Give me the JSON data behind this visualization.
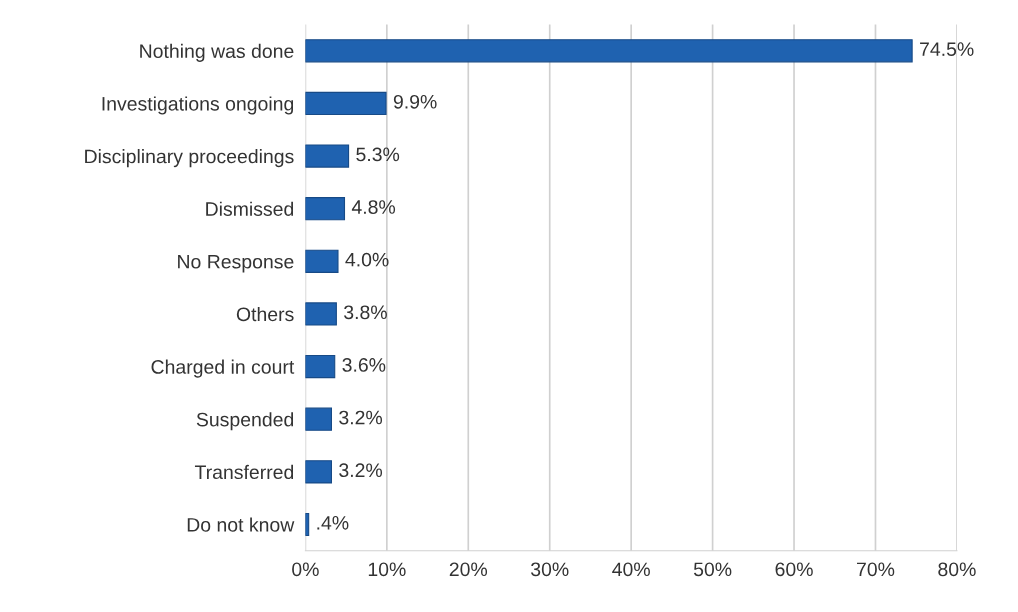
{
  "chart_data": {
    "type": "bar",
    "orientation": "horizontal",
    "categories": [
      "Nothing was done",
      "Investigations ongoing",
      "Disciplinary proceedings",
      "Dismissed",
      "No Response",
      "Others",
      "Charged in court",
      "Suspended",
      "Transferred",
      "Do not know"
    ],
    "values": [
      74.5,
      9.9,
      5.3,
      4.8,
      4.0,
      3.8,
      3.6,
      3.2,
      3.2,
      0.4
    ],
    "value_labels": [
      "74.5%",
      "9.9%",
      "5.3%",
      "4.8%",
      "4.0%",
      "3.8%",
      "3.6%",
      "3.2%",
      "3.2%",
      ".4%"
    ],
    "color": "#1f62b0",
    "xlim": [
      0,
      80
    ],
    "xticks": [
      {
        "value": 0,
        "label": "0%"
      },
      {
        "value": 10,
        "label": "10%"
      },
      {
        "value": 20,
        "label": "20%"
      },
      {
        "value": 30,
        "label": "30%"
      },
      {
        "value": 40,
        "label": "40%"
      },
      {
        "value": 50,
        "label": "50%"
      },
      {
        "value": 60,
        "label": "60%"
      },
      {
        "value": 70,
        "label": "70%"
      },
      {
        "value": 80,
        "label": "80%"
      }
    ],
    "grid": "x",
    "legend": false
  }
}
